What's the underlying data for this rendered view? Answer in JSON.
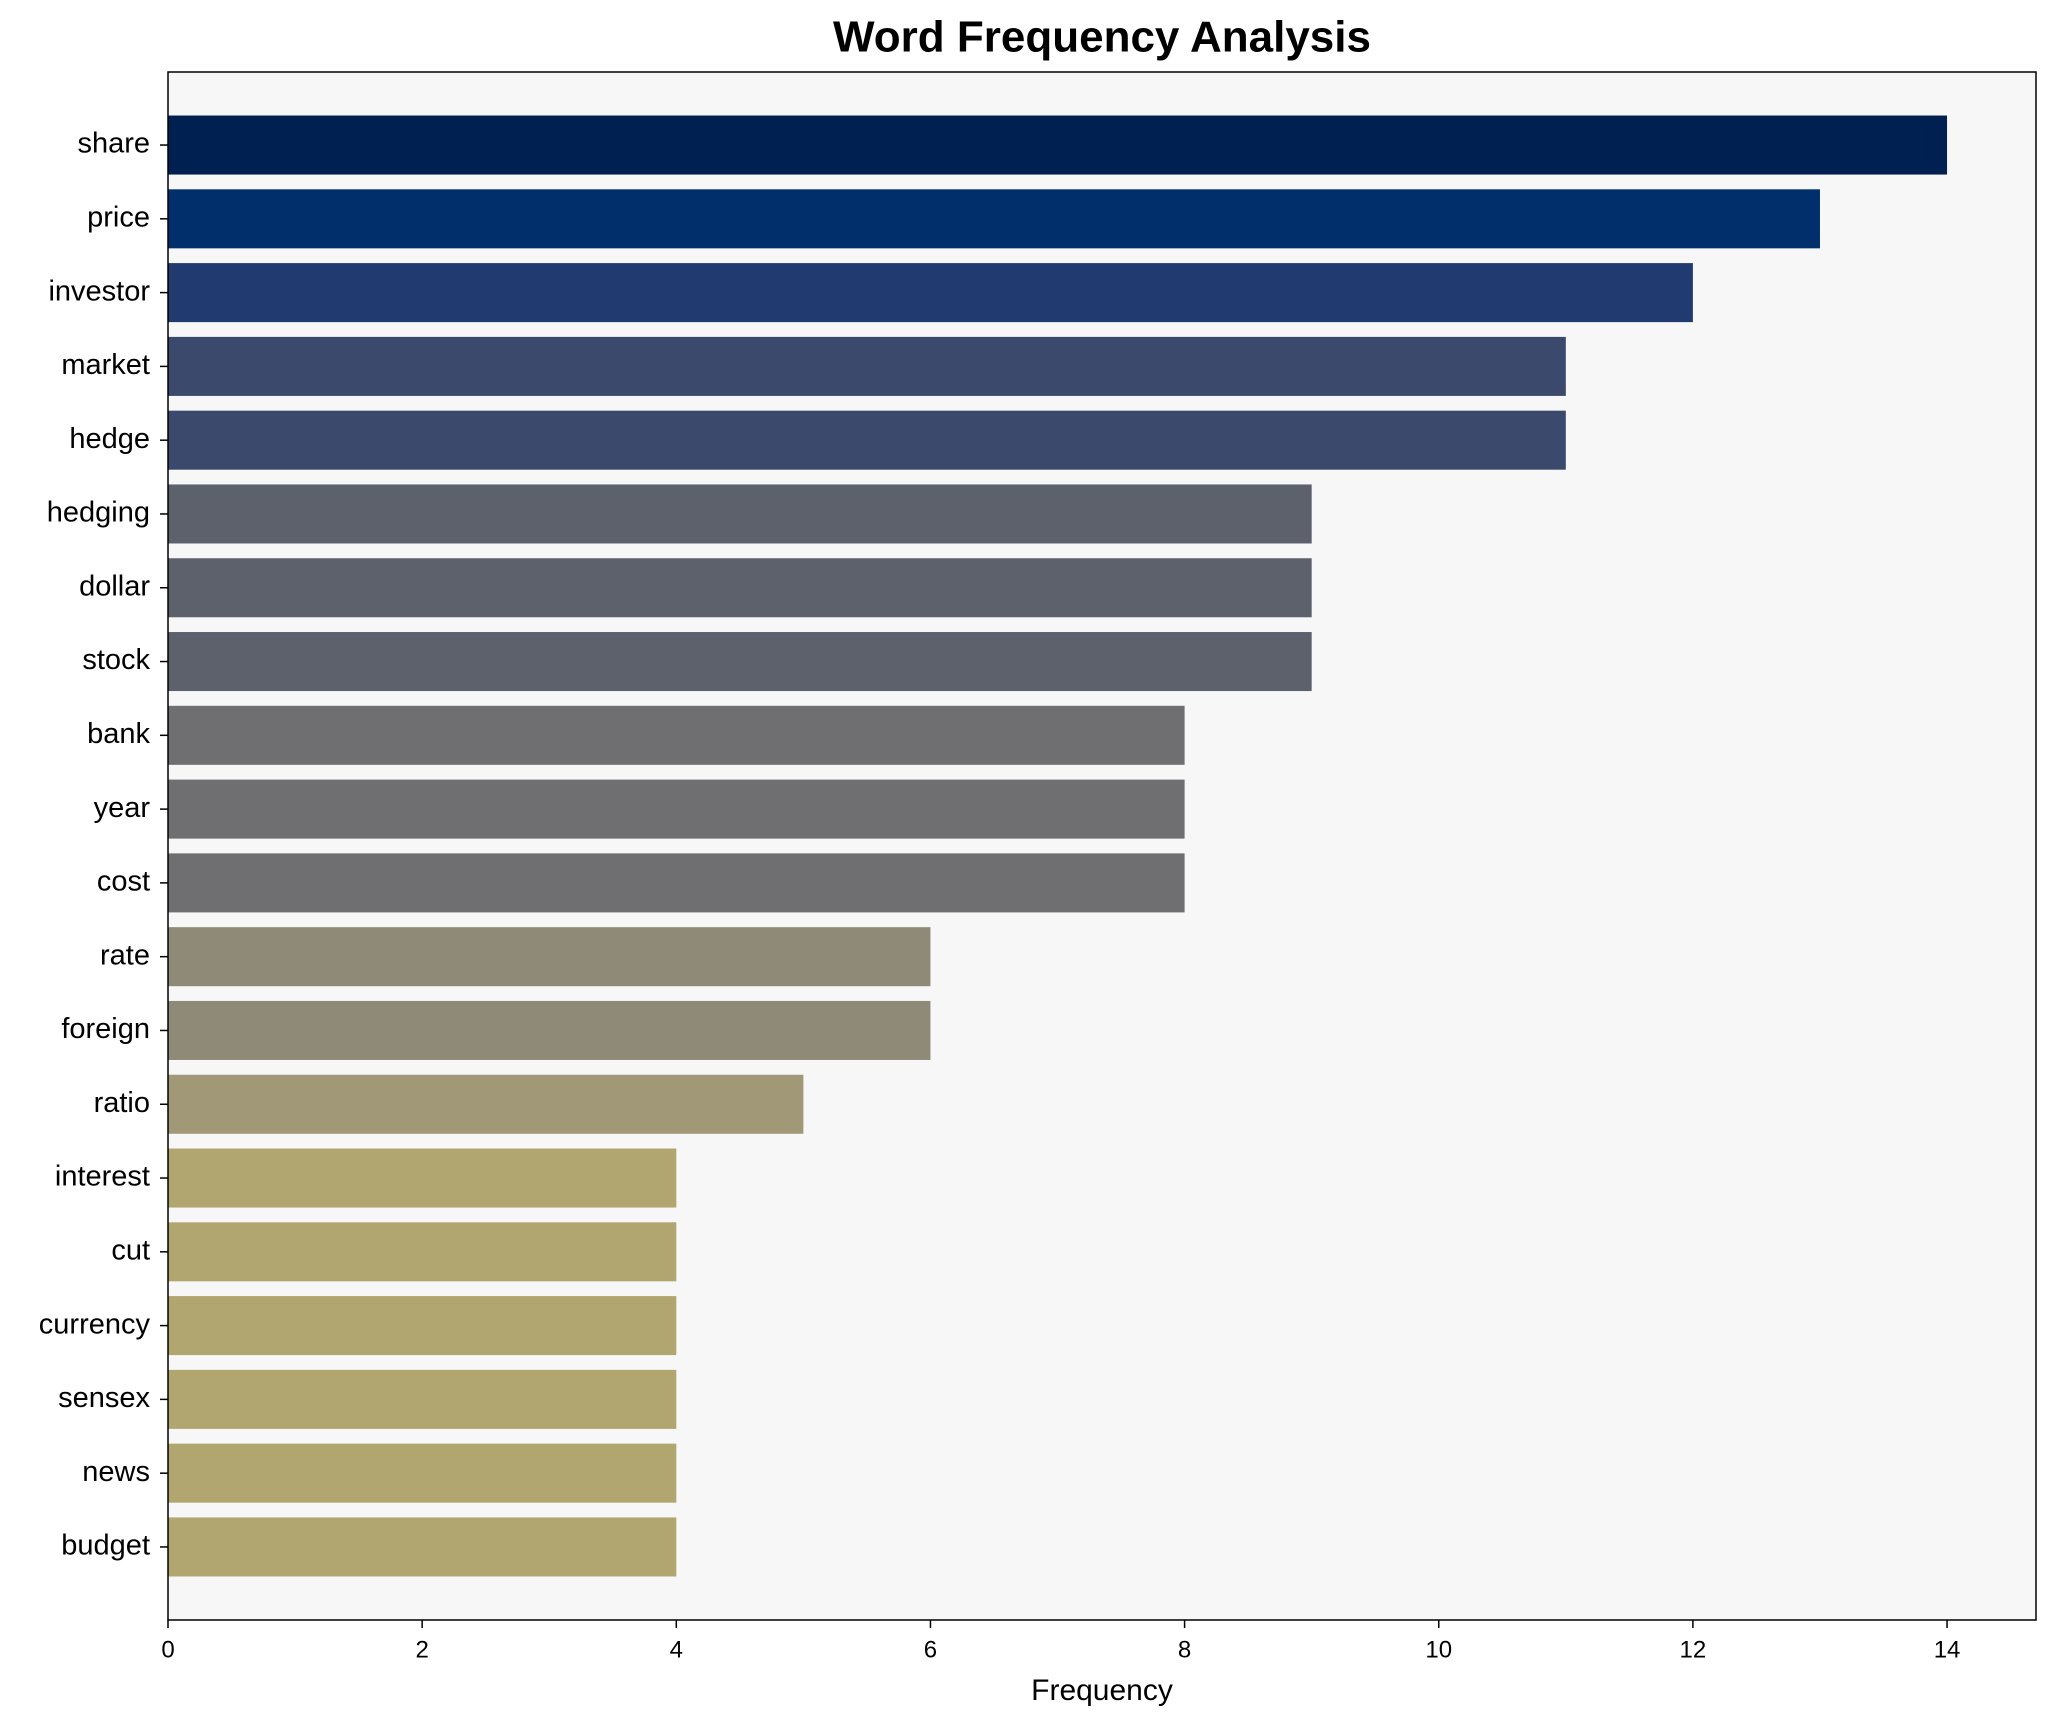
{
  "chart_data": {
    "type": "barh",
    "title": "Word Frequency Analysis",
    "xlabel": "Frequency",
    "categories": [
      "share",
      "price",
      "investor",
      "market",
      "hedge",
      "hedging",
      "dollar",
      "stock",
      "bank",
      "year",
      "cost",
      "rate",
      "foreign",
      "ratio",
      "interest",
      "cut",
      "currency",
      "sensex",
      "news",
      "budget"
    ],
    "values": [
      14,
      13,
      12,
      11,
      11,
      9,
      9,
      9,
      8,
      8,
      8,
      6,
      6,
      5,
      4,
      4,
      4,
      4,
      4,
      4
    ],
    "colors": [
      "#002051",
      "#002f6c",
      "#213a70",
      "#3b496c",
      "#3b496c",
      "#5c616b",
      "#5c616b",
      "#5c616b",
      "#6f6f72",
      "#6f6f72",
      "#6f6f72",
      "#8f8a77",
      "#8f8a77",
      "#a09877",
      "#b1a570",
      "#b1a570",
      "#b1a570",
      "#b1a570",
      "#b1a570",
      "#b1a570"
    ],
    "xlim": [
      0,
      14.7
    ],
    "xticks": [
      0,
      2,
      4,
      6,
      8,
      10,
      12,
      14
    ]
  }
}
